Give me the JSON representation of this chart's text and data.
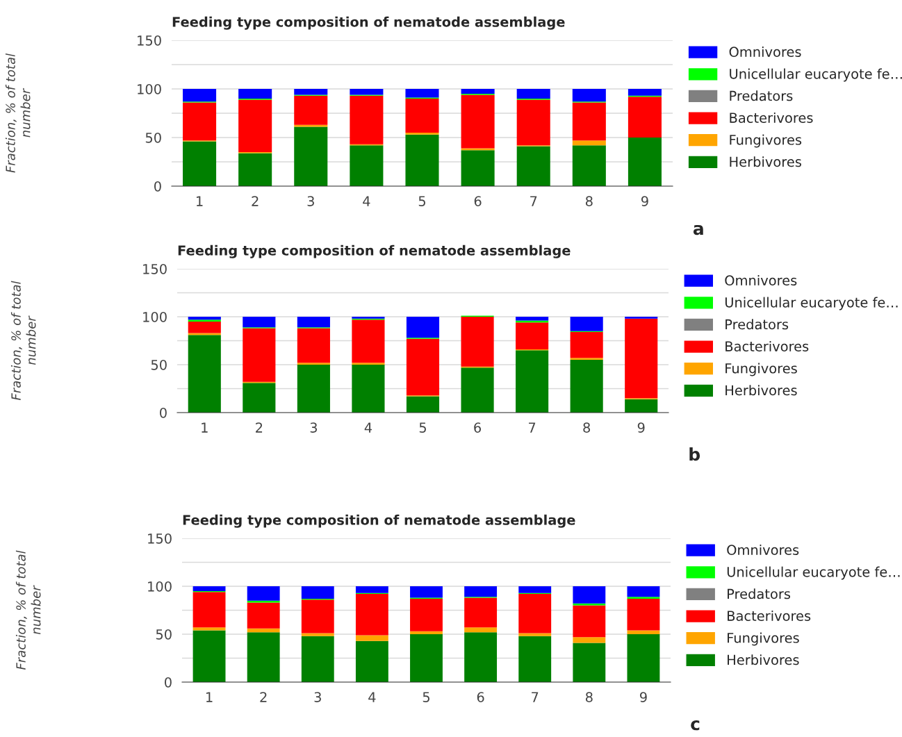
{
  "chart_data": [
    {
      "type": "bar",
      "stacked": true,
      "title": "Feeding type composition of nematode assemblage",
      "ylabel": "Fraction, % of total\nnumber",
      "categories": [
        "1",
        "2",
        "3",
        "4",
        "5",
        "6",
        "7",
        "8",
        "9"
      ],
      "ylim": [
        0,
        150
      ],
      "yticks": [
        0,
        {
          "value": 25,
          "label": null
        },
        50,
        {
          "value": 75,
          "label": null
        },
        100,
        {
          "value": 125,
          "label": null
        },
        150
      ],
      "grid": "y",
      "legend": "right",
      "annotations": [
        "a"
      ],
      "series": [
        {
          "name": "Herbivores",
          "color": "#008000",
          "values": [
            46,
            34,
            61,
            42,
            53,
            37,
            41,
            42,
            50
          ]
        },
        {
          "name": "Fungivores",
          "color": "#ffa500",
          "values": [
            1,
            1,
            2,
            1,
            2,
            2,
            1,
            5,
            0
          ]
        },
        {
          "name": "Bacterivores",
          "color": "#ff0000",
          "values": [
            39,
            54,
            30,
            50,
            35,
            55,
            47,
            39,
            42
          ]
        },
        {
          "name": "Predators",
          "color": "#808080",
          "values": [
            0,
            0,
            0,
            0,
            0,
            0,
            0,
            0,
            0
          ]
        },
        {
          "name": "Unicellular eucaryote fe…",
          "color": "#00ff00",
          "values": [
            1,
            1,
            1,
            1,
            1,
            1,
            1,
            1,
            1
          ]
        },
        {
          "name": "Omnivores",
          "color": "#0000ff",
          "values": [
            13,
            10,
            6,
            6,
            9,
            5,
            10,
            13,
            7
          ]
        }
      ]
    },
    {
      "type": "bar",
      "stacked": true,
      "title": "Feeding type composition of nematode assemblage",
      "ylabel": "Fraction, % of total\nnumber",
      "categories": [
        "1",
        "2",
        "3",
        "4",
        "5",
        "6",
        "7",
        "8",
        "9"
      ],
      "ylim": [
        0,
        150
      ],
      "yticks": [
        0,
        {
          "value": 25,
          "label": null
        },
        50,
        {
          "value": 75,
          "label": null
        },
        100,
        {
          "value": 125,
          "label": null
        },
        150
      ],
      "grid": "y",
      "legend": "right",
      "annotations": [
        "b"
      ],
      "series": [
        {
          "name": "Herbivores",
          "color": "#008000",
          "values": [
            81,
            31,
            50,
            50,
            17,
            47,
            65,
            55,
            14
          ]
        },
        {
          "name": "Fungivores",
          "color": "#ffa500",
          "values": [
            2,
            1,
            2,
            2,
            1,
            1,
            1,
            2,
            1
          ]
        },
        {
          "name": "Bacterivores",
          "color": "#ff0000",
          "values": [
            12,
            56,
            36,
            45,
            59,
            52,
            28,
            27,
            83
          ]
        },
        {
          "name": "Predators",
          "color": "#808080",
          "values": [
            0,
            0,
            0,
            0,
            0,
            0,
            0,
            0,
            0
          ]
        },
        {
          "name": "Unicellular eucaryote fe…",
          "color": "#00ff00",
          "values": [
            2,
            1,
            1,
            1,
            1,
            1,
            2,
            1,
            0
          ]
        },
        {
          "name": "Omnivores",
          "color": "#0000ff",
          "values": [
            3,
            11,
            11,
            2,
            22,
            0,
            4,
            15,
            2
          ]
        }
      ]
    },
    {
      "type": "bar",
      "stacked": true,
      "title": "Feeding type composition of nematode assemblage",
      "ylabel": "Fraction, % of total\nnumber",
      "categories": [
        "1",
        "2",
        "3",
        "4",
        "5",
        "6",
        "7",
        "8",
        "9"
      ],
      "ylim": [
        0,
        150
      ],
      "yticks": [
        0,
        {
          "value": 25,
          "label": null
        },
        50,
        {
          "value": 75,
          "label": null
        },
        100,
        {
          "value": 125,
          "label": null
        },
        150
      ],
      "grid": "y",
      "legend": "right",
      "annotations": [
        "c"
      ],
      "series": [
        {
          "name": "Herbivores",
          "color": "#008000",
          "values": [
            54,
            52,
            48,
            43,
            50,
            52,
            48,
            41,
            50
          ]
        },
        {
          "name": "Fungivores",
          "color": "#ffa500",
          "values": [
            3,
            4,
            3,
            6,
            3,
            5,
            3,
            6,
            4
          ]
        },
        {
          "name": "Bacterivores",
          "color": "#ff0000",
          "values": [
            37,
            27,
            35,
            43,
            34,
            31,
            41,
            33,
            33
          ]
        },
        {
          "name": "Predators",
          "color": "#808080",
          "values": [
            0,
            0,
            0,
            0,
            0,
            0,
            0,
            0,
            0
          ]
        },
        {
          "name": "Unicellular eucaryote fe…",
          "color": "#00ff00",
          "values": [
            1,
            2,
            1,
            1,
            1,
            1,
            1,
            2,
            2
          ]
        },
        {
          "name": "Omnivores",
          "color": "#0000ff",
          "values": [
            5,
            15,
            13,
            7,
            12,
            11,
            7,
            18,
            11
          ]
        }
      ]
    }
  ]
}
